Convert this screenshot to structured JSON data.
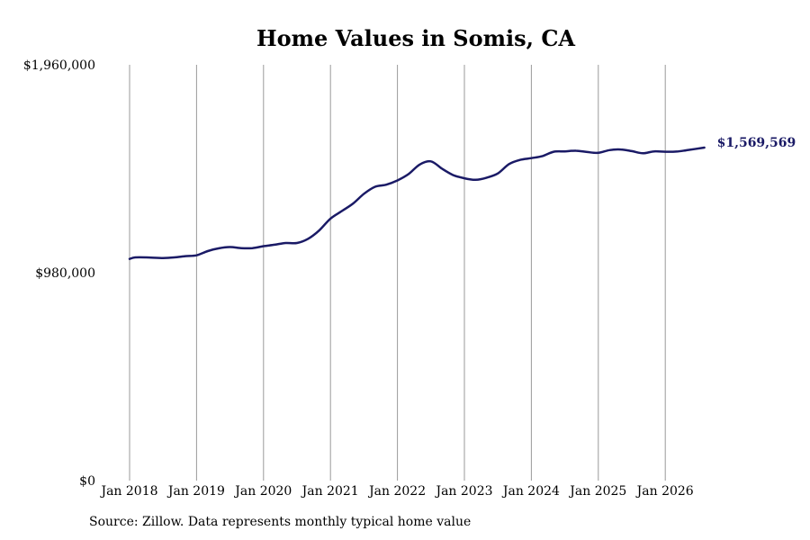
{
  "chart_data": {
    "type": "line",
    "title": "Home Values in Somis, CA",
    "source_note": "Source: Zillow. Data represents monthly typical home value",
    "ylim": [
      0,
      1960000
    ],
    "y_ticks": [
      {
        "value": 0,
        "label": "$0"
      },
      {
        "value": 980000,
        "label": "$980,000"
      },
      {
        "value": 1960000,
        "label": "$1,960,000"
      }
    ],
    "x_ticks": [
      {
        "date": "2018-01",
        "label": "Jan 2018"
      },
      {
        "date": "2019-01",
        "label": "Jan 2019"
      },
      {
        "date": "2020-01",
        "label": "Jan 2020"
      },
      {
        "date": "2021-01",
        "label": "Jan 2021"
      },
      {
        "date": "2022-01",
        "label": "Jan 2022"
      },
      {
        "date": "2023-01",
        "label": "Jan 2023"
      },
      {
        "date": "2024-01",
        "label": "Jan 2024"
      },
      {
        "date": "2025-01",
        "label": "Jan 2025"
      },
      {
        "date": "2026-01",
        "label": "Jan 2026"
      }
    ],
    "grid": "vertical at x ticks",
    "line_color": "#1a1a66",
    "end_label": "$1,569,569",
    "series": [
      {
        "points": [
          [
            "2018-01",
            1045000
          ],
          [
            "2018-02",
            1052000
          ],
          [
            "2018-04",
            1052000
          ],
          [
            "2018-07",
            1049000
          ],
          [
            "2018-09",
            1052000
          ],
          [
            "2018-11",
            1058000
          ],
          [
            "2019-01",
            1062000
          ],
          [
            "2019-03",
            1082000
          ],
          [
            "2019-05",
            1095000
          ],
          [
            "2019-07",
            1101000
          ],
          [
            "2019-09",
            1096000
          ],
          [
            "2019-11",
            1096000
          ],
          [
            "2020-01",
            1105000
          ],
          [
            "2020-03",
            1112000
          ],
          [
            "2020-05",
            1120000
          ],
          [
            "2020-07",
            1120000
          ],
          [
            "2020-09",
            1140000
          ],
          [
            "2020-11",
            1180000
          ],
          [
            "2021-01",
            1235000
          ],
          [
            "2021-03",
            1270000
          ],
          [
            "2021-05",
            1305000
          ],
          [
            "2021-07",
            1352000
          ],
          [
            "2021-09",
            1385000
          ],
          [
            "2021-11",
            1395000
          ],
          [
            "2022-01",
            1415000
          ],
          [
            "2022-03",
            1445000
          ],
          [
            "2022-05",
            1490000
          ],
          [
            "2022-07",
            1505000
          ],
          [
            "2022-09",
            1470000
          ],
          [
            "2022-11",
            1440000
          ],
          [
            "2023-01",
            1425000
          ],
          [
            "2023-03",
            1418000
          ],
          [
            "2023-05",
            1428000
          ],
          [
            "2023-07",
            1448000
          ],
          [
            "2023-09",
            1492000
          ],
          [
            "2023-11",
            1512000
          ],
          [
            "2024-01",
            1520000
          ],
          [
            "2024-03",
            1530000
          ],
          [
            "2024-05",
            1550000
          ],
          [
            "2024-07",
            1552000
          ],
          [
            "2024-09",
            1555000
          ],
          [
            "2024-11",
            1549000
          ],
          [
            "2025-01",
            1545000
          ],
          [
            "2025-03",
            1558000
          ],
          [
            "2025-05",
            1561000
          ],
          [
            "2025-07",
            1553000
          ],
          [
            "2025-09",
            1543000
          ],
          [
            "2025-11",
            1552000
          ],
          [
            "2026-01",
            1550000
          ],
          [
            "2026-03",
            1551000
          ],
          [
            "2026-05",
            1558000
          ],
          [
            "2026-08",
            1569569
          ]
        ]
      }
    ]
  }
}
